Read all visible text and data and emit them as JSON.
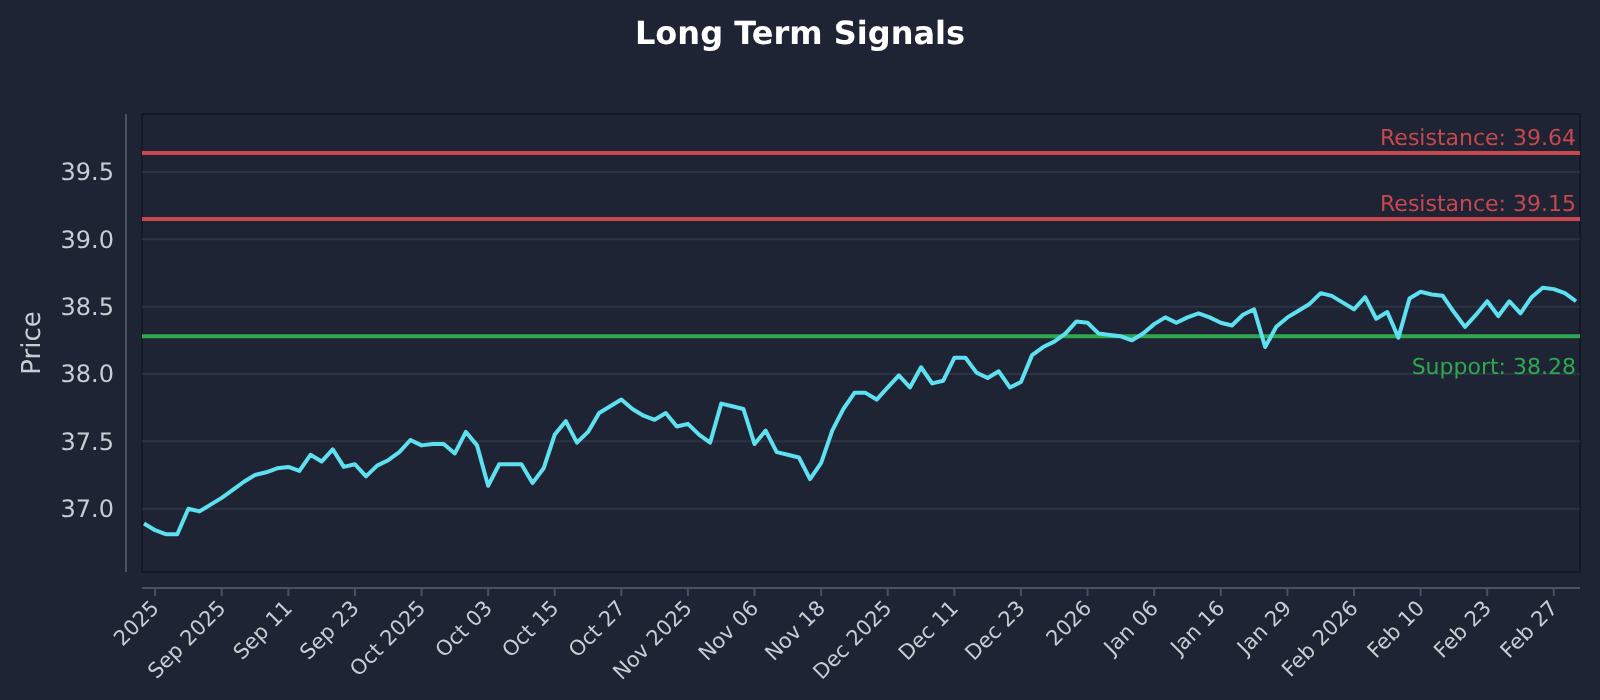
{
  "chart_data": {
    "type": "line",
    "title": "Long Term Signals",
    "ylabel": "Price",
    "categories": [
      null,
      "2025",
      null,
      null,
      null,
      null,
      null,
      "Sep 2025",
      null,
      null,
      null,
      null,
      null,
      "Sep 11",
      null,
      null,
      null,
      null,
      null,
      "Sep 23",
      null,
      null,
      null,
      null,
      null,
      "Oct 2025",
      null,
      null,
      null,
      null,
      null,
      "Oct 03",
      null,
      null,
      null,
      null,
      null,
      "Oct 15",
      null,
      null,
      null,
      null,
      null,
      "Oct 27",
      null,
      null,
      null,
      null,
      null,
      "Nov 2025",
      null,
      null,
      null,
      null,
      null,
      "Nov 06",
      null,
      null,
      null,
      null,
      null,
      "Nov 18",
      null,
      null,
      null,
      null,
      null,
      "Dec 2025",
      null,
      null,
      null,
      null,
      null,
      "Dec 11",
      null,
      null,
      null,
      null,
      null,
      "Dec 23",
      null,
      null,
      null,
      null,
      null,
      "2026",
      null,
      null,
      null,
      null,
      null,
      "Jan 06",
      null,
      null,
      null,
      null,
      null,
      "Jan 16",
      null,
      null,
      null,
      null,
      null,
      "Jan 29",
      null,
      null,
      null,
      null,
      null,
      "Feb 2026",
      null,
      null,
      null,
      null,
      null,
      "Feb 10",
      null,
      null,
      null,
      null,
      null,
      "Feb 23",
      null,
      null,
      null,
      null,
      null,
      "Feb 27",
      null,
      null
    ],
    "series": [
      {
        "color": "#5ee0f0",
        "values": [
          36.89,
          36.84,
          36.81,
          36.81,
          37.0,
          36.98,
          37.03,
          37.08,
          37.14,
          37.2,
          37.25,
          37.27,
          37.3,
          37.31,
          37.28,
          37.4,
          37.35,
          37.44,
          37.31,
          37.33,
          37.24,
          37.32,
          37.36,
          37.42,
          37.51,
          37.47,
          37.48,
          37.48,
          37.41,
          37.57,
          37.47,
          37.17,
          37.33,
          37.33,
          37.33,
          37.19,
          37.3,
          37.55,
          37.65,
          37.49,
          37.57,
          37.71,
          37.76,
          37.81,
          37.74,
          37.69,
          37.66,
          37.71,
          37.61,
          37.63,
          37.55,
          37.49,
          37.78,
          37.76,
          37.74,
          37.48,
          37.58,
          37.42,
          37.4,
          37.38,
          37.22,
          37.34,
          37.58,
          37.74,
          37.86,
          37.86,
          37.81,
          37.9,
          37.99,
          37.9,
          38.05,
          37.93,
          37.95,
          38.12,
          38.12,
          38.01,
          37.97,
          38.02,
          37.9,
          37.94,
          38.14,
          38.2,
          38.24,
          38.3,
          38.39,
          38.38,
          38.3,
          38.29,
          38.28,
          38.25,
          38.3,
          38.37,
          38.42,
          38.38,
          38.42,
          38.45,
          38.42,
          38.38,
          38.36,
          38.44,
          38.48,
          38.2,
          38.35,
          38.42,
          38.47,
          38.52,
          38.6,
          38.58,
          38.53,
          38.48,
          38.57,
          38.41,
          38.46,
          38.27,
          38.56,
          38.61,
          38.59,
          38.58,
          38.46,
          38.35,
          38.44,
          38.54,
          38.43,
          38.54,
          38.45,
          38.57,
          38.64,
          38.63,
          38.6,
          38.54
        ]
      }
    ],
    "ylim": [
      36.53,
      39.93
    ],
    "yticks": [
      "37.0",
      "37.5",
      "38.0",
      "38.5",
      "39.0",
      "39.5"
    ],
    "grid": "y",
    "ref_lines": [
      {
        "axis": "y",
        "value": 39.64,
        "label": "Resistance: 39.64",
        "color": "#c9474f"
      },
      {
        "axis": "y",
        "value": 39.15,
        "label": "Resistance: 39.15",
        "color": "#c9474f"
      },
      {
        "axis": "y",
        "value": 38.28,
        "label": "Support: 38.28",
        "color": "#2fa84f"
      }
    ]
  }
}
